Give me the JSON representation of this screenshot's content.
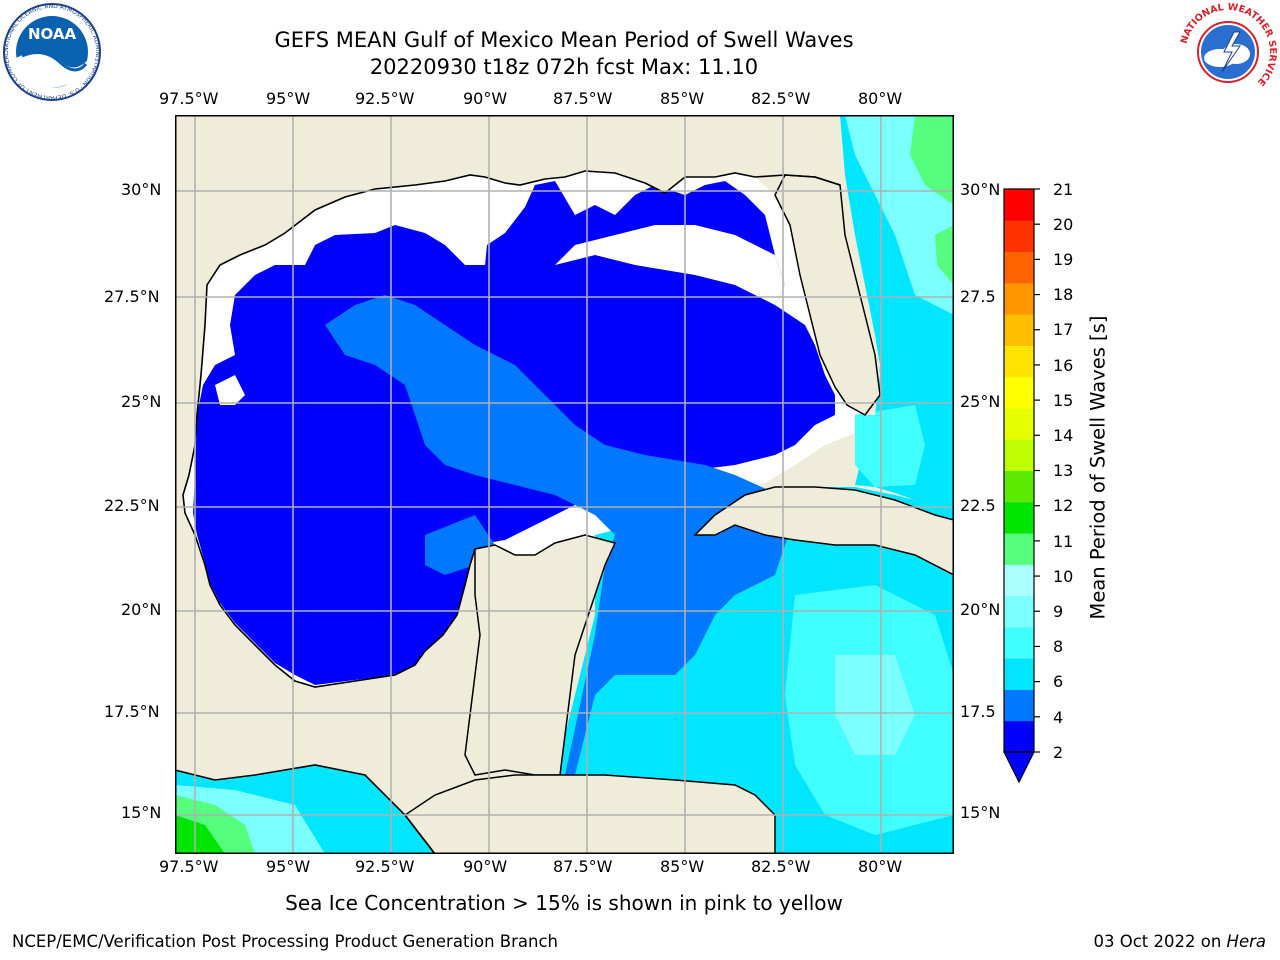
{
  "header": {
    "title_line1": "GEFS MEAN Gulf of Mexico Mean Period of Swell Waves",
    "title_line2": "20220930 t18z 072h fcst   Max: 11.10"
  },
  "logos": {
    "left": "NOAA",
    "left_ring": "NATIONAL OCEANIC AND ATMOSPHERIC ADMINISTRATION · U.S. DEPARTMENT OF COMMERCE",
    "right_ring": "NATIONAL WEATHER SERVICE"
  },
  "map": {
    "lon_ticks": [
      "97.5°W",
      "95°W",
      "92.5°W",
      "90°W",
      "87.5°W",
      "85°W",
      "82.5°W",
      "80°W"
    ],
    "lat_ticks_left": [
      "30°N",
      "27.5°N",
      "25°N",
      "22.5°N",
      "20°N",
      "17.5°N",
      "15°N"
    ],
    "lat_ticks_right": [
      "30°N",
      "27.5",
      "25°N",
      "22.5",
      "20°N",
      "17.5",
      "15°N"
    ],
    "colors": {
      "land": "#efedda",
      "ocean_no_data": "#ffffff",
      "grid": "#b0b0b0",
      "coast": "#000000"
    }
  },
  "colorbar": {
    "label": "Mean Period of Swell Waves [s]",
    "ticks": [
      "21",
      "20",
      "19",
      "18",
      "17",
      "16",
      "15",
      "14",
      "13",
      "12",
      "11",
      "10",
      "9",
      "8",
      "6",
      "4",
      "2"
    ],
    "colors": [
      "#0000ff",
      "#0078ff",
      "#00e6ff",
      "#42ffff",
      "#7cffff",
      "#aaffff",
      "#55ff7d",
      "#00e600",
      "#5aeb00",
      "#beff00",
      "#e6ff00",
      "#ffff00",
      "#ffe600",
      "#ffbe00",
      "#ff9600",
      "#ff6400",
      "#ff3200",
      "#ff0000"
    ]
  },
  "caption": "Sea Ice Concentration > 15% is shown in pink to yellow",
  "footer": {
    "left": "NCEP/EMC/Verification Post Processing Product Generation Branch",
    "right_prefix": "03 Oct 2022 on ",
    "right_host": "Hera"
  }
}
